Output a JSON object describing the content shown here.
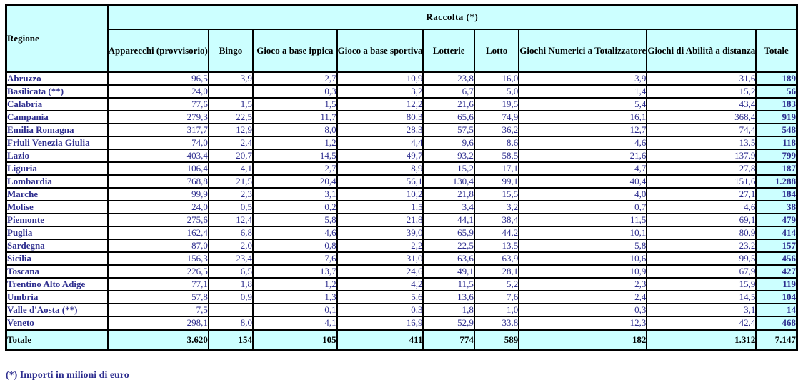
{
  "colors": {
    "cell_fill_cyan": "#CCFFFF",
    "text_navy": "#2E2E8F",
    "border_black": "#000000"
  },
  "table": {
    "corner_header": "Regione",
    "group_header": "Raccolta  (*)",
    "columns": [
      "Apparecchi (provvisorio)",
      "Bingo",
      "Gioco a base ippica",
      "Gioco a base sportiva",
      "Lotterie",
      "Lotto",
      "Giochi Numerici a Totalizzatore",
      "Giochi di Abilità a distanza",
      "Totale"
    ],
    "rows": [
      {
        "region": "Abruzzo",
        "values": [
          "96,5",
          "3,9",
          "2,7",
          "10,9",
          "23,8",
          "16,0",
          "3,9",
          "31,6"
        ],
        "total": "189"
      },
      {
        "region": "Basilicata (**)",
        "values": [
          "24,0",
          "",
          "0,3",
          "3,2",
          "6,7",
          "5,0",
          "1,4",
          "15,2"
        ],
        "total": "56"
      },
      {
        "region": "Calabria",
        "values": [
          "77,6",
          "1,5",
          "1,5",
          "12,2",
          "21,6",
          "19,5",
          "5,4",
          "43,4"
        ],
        "total": "183"
      },
      {
        "region": "Campania",
        "values": [
          "279,3",
          "22,5",
          "11,7",
          "80,3",
          "65,6",
          "74,9",
          "16,1",
          "368,4"
        ],
        "total": "919"
      },
      {
        "region": "Emilia Romagna",
        "values": [
          "317,7",
          "12,9",
          "8,0",
          "28,3",
          "57,5",
          "36,2",
          "12,7",
          "74,4"
        ],
        "total": "548"
      },
      {
        "region": "Friuli Venezia Giulia",
        "values": [
          "74,0",
          "2,4",
          "1,2",
          "4,4",
          "9,6",
          "8,6",
          "4,6",
          "13,5"
        ],
        "total": "118"
      },
      {
        "region": "Lazio",
        "values": [
          "403,4",
          "20,7",
          "14,5",
          "49,7",
          "93,2",
          "58,5",
          "21,6",
          "137,9"
        ],
        "total": "799"
      },
      {
        "region": "Liguria",
        "values": [
          "106,4",
          "4,1",
          "2,7",
          "8,9",
          "15,2",
          "17,1",
          "4,7",
          "27,8"
        ],
        "total": "187"
      },
      {
        "region": "Lombardia",
        "values": [
          "768,8",
          "21,5",
          "20,4",
          "56,1",
          "130,4",
          "99,1",
          "40,4",
          "151,6"
        ],
        "total": "1.288"
      },
      {
        "region": "Marche",
        "values": [
          "99,9",
          "2,3",
          "3,1",
          "10,2",
          "21,8",
          "15,5",
          "4,0",
          "27,1"
        ],
        "total": "184"
      },
      {
        "region": "Molise",
        "values": [
          "24,0",
          "0,5",
          "0,2",
          "1,5",
          "3,4",
          "3,2",
          "0,7",
          "4,6"
        ],
        "total": "38"
      },
      {
        "region": "Piemonte",
        "values": [
          "275,6",
          "12,4",
          "5,8",
          "21,8",
          "44,1",
          "38,4",
          "11,5",
          "69,1"
        ],
        "total": "479"
      },
      {
        "region": "Puglia",
        "values": [
          "162,4",
          "6,8",
          "4,6",
          "39,0",
          "65,9",
          "44,2",
          "10,1",
          "80,9"
        ],
        "total": "414"
      },
      {
        "region": "Sardegna",
        "values": [
          "87,0",
          "2,0",
          "0,8",
          "2,2",
          "22,5",
          "13,5",
          "5,8",
          "23,2"
        ],
        "total": "157"
      },
      {
        "region": "Sicilia",
        "values": [
          "156,3",
          "23,4",
          "7,6",
          "31,0",
          "63,6",
          "63,9",
          "10,6",
          "99,5"
        ],
        "total": "456"
      },
      {
        "region": "Toscana",
        "values": [
          "226,5",
          "6,5",
          "13,7",
          "24,6",
          "49,1",
          "28,1",
          "10,9",
          "67,9"
        ],
        "total": "427"
      },
      {
        "region": "Trentino Alto Adige",
        "values": [
          "77,1",
          "1,8",
          "1,2",
          "4,2",
          "11,5",
          "5,2",
          "2,3",
          "15,9"
        ],
        "total": "119"
      },
      {
        "region": "Umbria",
        "values": [
          "57,8",
          "0,9",
          "1,3",
          "5,6",
          "13,6",
          "7,6",
          "2,4",
          "14,5"
        ],
        "total": "104"
      },
      {
        "region": "Valle d'Aosta (**)",
        "values": [
          "7,5",
          "",
          "0,1",
          "0,3",
          "1,8",
          "1,0",
          "0,3",
          "3,1"
        ],
        "total": "14"
      },
      {
        "region": "Veneto",
        "values": [
          "298,1",
          "8,0",
          "4,1",
          "16,9",
          "52,9",
          "33,8",
          "12,3",
          "42,4"
        ],
        "total": "468"
      }
    ],
    "total_row": {
      "label": "Totale",
      "values": [
        "3.620",
        "154",
        "105",
        "411",
        "774",
        "589",
        "182",
        "1.312"
      ],
      "total": "7.147"
    }
  },
  "footnote": "(*) Importi in milioni di euro"
}
